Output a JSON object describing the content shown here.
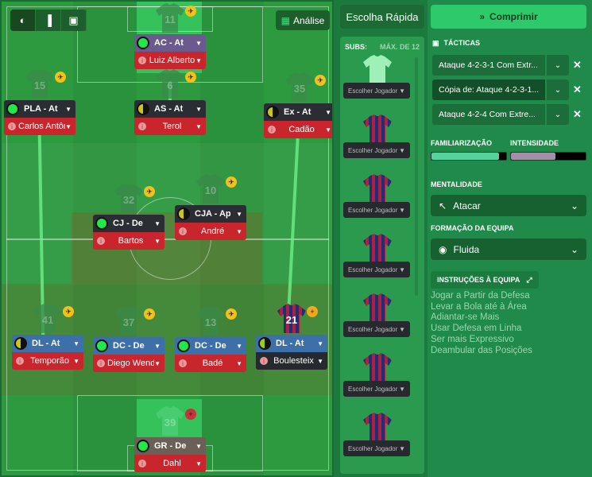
{
  "toolbar": {
    "analysis_label": "Análise",
    "icons": [
      "contrast-icon",
      "bar-chart-icon",
      "tactics-board-icon"
    ]
  },
  "players": [
    {
      "role": "AC - At",
      "name": "Luiz Alberto",
      "number": "11",
      "status": "full",
      "role_color": "#6a5a8e",
      "name_color": "#c8262c",
      "badge": "plane"
    },
    {
      "role": "PLA - At",
      "name": "Carlos Antônio",
      "number": "15",
      "status": "full",
      "role_color": "#2a2d33",
      "name_color": "#c8262c",
      "badge": "plane"
    },
    {
      "role": "AS - At",
      "name": "Terol",
      "number": "6",
      "status": "half",
      "role_color": "#2a2d33",
      "name_color": "#c8262c",
      "badge": "plane"
    },
    {
      "role": "Ex - At",
      "name": "Cadão",
      "number": "35",
      "status": "half",
      "role_color": "#2a2d33",
      "name_color": "#c8262c",
      "badge": "plane"
    },
    {
      "role": "CJ - De",
      "name": "Bartos",
      "number": "32",
      "status": "full",
      "role_color": "#2a2d33",
      "name_color": "#c8262c",
      "badge": "plane"
    },
    {
      "role": "CJA - Ap",
      "name": "André",
      "number": "10",
      "status": "half",
      "role_color": "#2a2d33",
      "name_color": "#c8262c",
      "badge": "plane"
    },
    {
      "role": "DL - At",
      "name": "Temporão",
      "number": "41",
      "status": "half",
      "role_color": "#3d6fa8",
      "name_color": "#c8262c",
      "badge": "plane"
    },
    {
      "role": "DC - De",
      "name": "Diego Wendel",
      "number": "37",
      "status": "full",
      "role_color": "#3d6fa8",
      "name_color": "#c8262c",
      "badge": "plane"
    },
    {
      "role": "DC - De",
      "name": "Badé",
      "number": "13",
      "status": "full",
      "role_color": "#3d6fa8",
      "name_color": "#c8262c",
      "badge": "plane"
    },
    {
      "role": "DL - At",
      "name": "Boulesteix",
      "number": "21",
      "status": "half-lime",
      "role_color": "#3d6fa8",
      "name_color": "#26292d",
      "badge": "plus"
    },
    {
      "role": "GR - De",
      "name": "Dahl",
      "number": "39",
      "status": "full",
      "role_color": "#6a6058",
      "name_color": "#c8262c",
      "badge": "red-plus"
    }
  ],
  "subs": {
    "quick_pick": "Escolha Rápida",
    "title": "SUBS:",
    "max": "MÁX. DE 12",
    "slot_label": "Escolher Jogador",
    "slots": 7
  },
  "right": {
    "compress": "Comprimir",
    "tactics_label": "TÁCTICAS",
    "tactics": [
      "Ataque 4-2-3-1 Com Extr...",
      "Cópia de: Ataque 4-2-3-1...",
      "Ataque 4-2-4 Com Extre..."
    ],
    "selected_tactic": 1,
    "familiarity_label": "FAMILIARIZAÇÃO",
    "familiarity": 0.9,
    "intensity_label": "INTENSIDADE",
    "intensity": 0.6,
    "mentality_label": "MENTALIDADE",
    "mentality": "Atacar",
    "shape_label": "FORMAÇÃO DA EQUIPA",
    "shape": "Fluida",
    "instructions_label": "INSTRUÇÕES À EQUIPA",
    "instructions": [
      "Jogar a Partir da Defesa",
      "Levar a Bola até à Área",
      "Adiantar-se Mais",
      "Usar Defesa em Linha",
      "Ser mais Expressivo",
      "Deambular das Posições"
    ]
  },
  "colors": {
    "accent": "#2ec96a",
    "pitch": "#2d9a40",
    "panel": "#1f8a4a"
  }
}
